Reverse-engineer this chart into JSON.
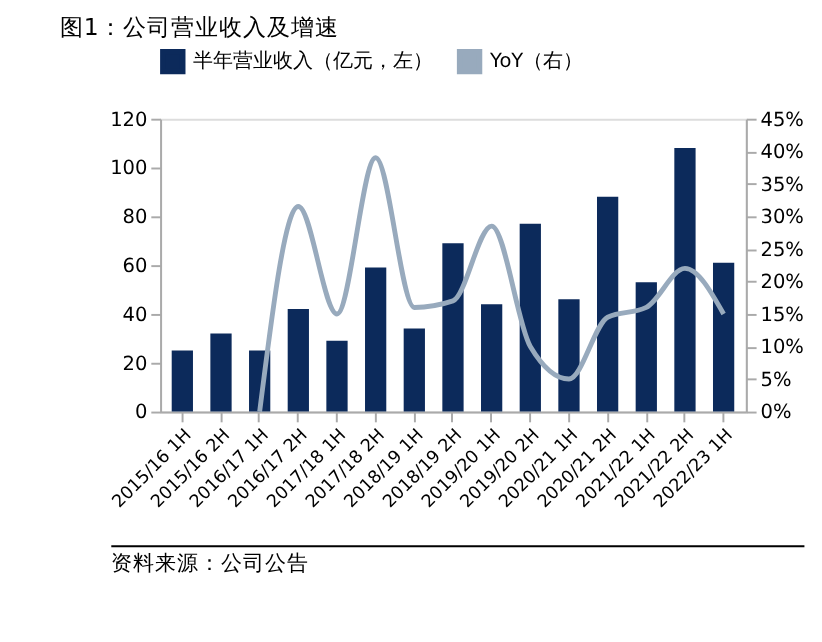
{
  "chart_data": {
    "type": "bar",
    "title": "图1：公司营业收入及增速",
    "categories": [
      "2015/16 1H",
      "2015/16 2H",
      "2016/17 1H",
      "2016/17 2H",
      "2017/18 1H",
      "2017/18 2H",
      "2018/19 1H",
      "2018/19 2H",
      "2019/20 1H",
      "2019/20 2H",
      "2020/21 1H",
      "2020/21 2H",
      "2021/22 1H",
      "2021/22 2H",
      "2022/23 1H"
    ],
    "series": [
      {
        "name": "半年营业收入（亿元，左）",
        "color": "#0c2a5b",
        "values": [
          25,
          32,
          25,
          42,
          29,
          59,
          34,
          69,
          44,
          77,
          46,
          88,
          53,
          108,
          61
        ]
      },
      {
        "name": "YoY（右）",
        "type": "line",
        "axis": "y2",
        "color": "#98aabd",
        "values": [
          null,
          null,
          0,
          31.5,
          15,
          39,
          16,
          17,
          28.5,
          10,
          5,
          14.5,
          16,
          22,
          15
        ]
      }
    ],
    "ylim": [
      0,
      120
    ],
    "yticks": [
      0,
      20,
      40,
      60,
      80,
      100,
      120
    ],
    "y2lim": [
      0,
      45
    ],
    "y2ticks": [
      {
        "value": 0,
        "label": "0%"
      },
      {
        "value": 5,
        "label": "5%"
      },
      {
        "value": 10,
        "label": "10%"
      },
      {
        "value": 15,
        "label": "15%"
      },
      {
        "value": 20,
        "label": "20%"
      },
      {
        "value": 25,
        "label": "25%"
      },
      {
        "value": 30,
        "label": "30%"
      },
      {
        "value": 35,
        "label": "35%"
      },
      {
        "value": 40,
        "label": "40%"
      },
      {
        "value": 45,
        "label": "45%"
      }
    ],
    "grid": false,
    "legend": "top",
    "marker": "none",
    "line_style": "solid",
    "annotations": [
      "资料来源：公司公告"
    ]
  }
}
